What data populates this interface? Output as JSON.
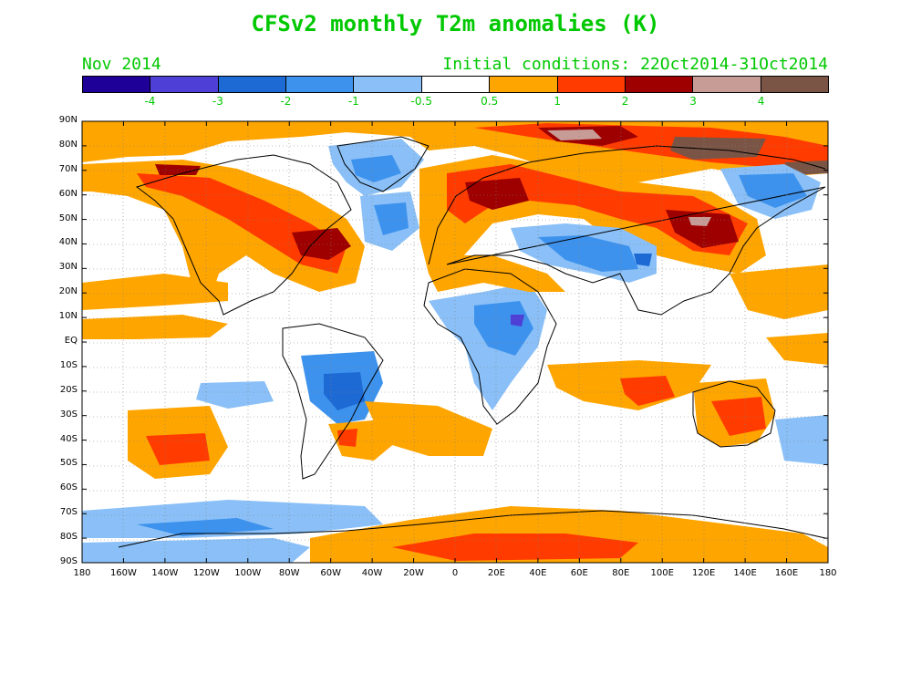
{
  "title": "CFSv2 monthly T2m anomalies (K)",
  "period": "Nov 2014",
  "initial_conditions": "Initial conditions: 22Oct2014-31Oct2014",
  "colors": {
    "text_green": "#00c800",
    "ocean_blank": "#ffffff",
    "coast": "#000000"
  },
  "colorbar": {
    "colors": [
      "#1e0098",
      "#4e3fd6",
      "#1e6ad4",
      "#3d92ed",
      "#8ac0f7",
      "#ffffff",
      "#ffa500",
      "#ff3b00",
      "#9e0000",
      "#c89c96",
      "#7a5545"
    ],
    "labels": [
      "-4",
      "-3",
      "-2",
      "-1",
      "-0.5",
      "0.5",
      "1",
      "2",
      "3",
      "4"
    ]
  },
  "axes": {
    "lat_labels": [
      "90N",
      "80N",
      "70N",
      "60N",
      "50N",
      "40N",
      "30N",
      "20N",
      "10N",
      "EQ",
      "10S",
      "20S",
      "30S",
      "40S",
      "50S",
      "60S",
      "70S",
      "80S",
      "90S"
    ],
    "lon_labels": [
      "180",
      "160W",
      "140W",
      "120W",
      "100W",
      "80W",
      "60W",
      "40W",
      "20W",
      "0",
      "20E",
      "40E",
      "60E",
      "80E",
      "100E",
      "120E",
      "140E",
      "160E",
      "180"
    ]
  }
}
